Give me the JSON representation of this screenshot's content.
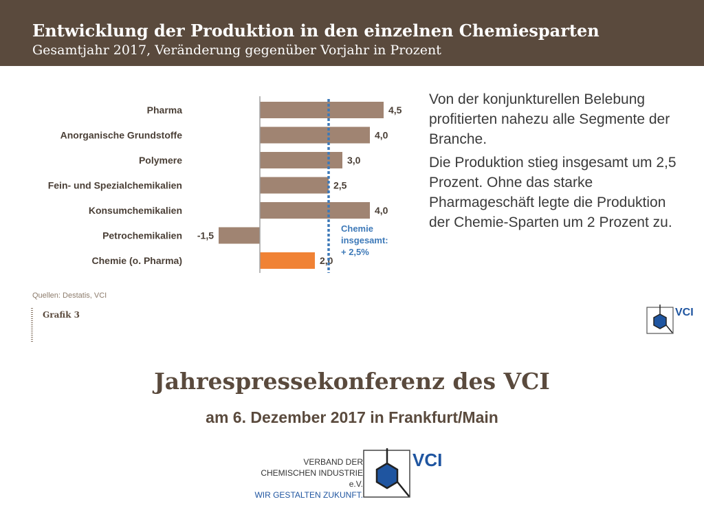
{
  "header": {
    "title": "Entwicklung der Produktion in den einzelnen Chemiesparten",
    "subtitle": "Gesamtjahr 2017, Veränderung gegenüber Vorjahr in Prozent"
  },
  "chart_data": {
    "type": "bar",
    "orientation": "horizontal",
    "categories": [
      "Pharma",
      "Anorganische Grundstoffe",
      "Polymere",
      "Fein- und Spezialchemikalien",
      "Konsumchemikalien",
      "Petrochemikalien",
      "Chemie (o. Pharma)"
    ],
    "values": [
      4.5,
      4.0,
      3.0,
      2.5,
      4.0,
      -1.5,
      2.0
    ],
    "value_labels": [
      "4,5",
      "4,0",
      "3,0",
      "2,5",
      "4,0",
      "-1,5",
      "2,0"
    ],
    "highlight_index": 6,
    "xlim": [
      -1.5,
      5.0
    ],
    "reference_line": {
      "value": 2.5,
      "label_lines": [
        "Chemie",
        "insgesamt:",
        "+ 2,5%"
      ]
    },
    "colors": {
      "bar": "#a08472",
      "highlight": "#f08235",
      "reference": "#3d79b8",
      "axis": "#a0a0a0"
    }
  },
  "text": {
    "p1": "Von der konjunkturellen Belebung profitierten nahezu alle Segmente der Branche.",
    "p2": "Die Produktion stieg insgesamt um 2,5 Prozent. Ohne das starke Pharmageschäft legte die Produktion der Chemie-Sparten um 2 Prozent zu."
  },
  "source": "Quellen: Destatis, VCI",
  "grafik": "Grafik 3",
  "logo_small": {
    "text": "VCI"
  },
  "event": {
    "title": "Jahrespressekonferenz des VCI",
    "subtitle": "am 6. Dezember 2017 in Frankfurt/Main"
  },
  "org": {
    "line1": "VERBAND DER",
    "line2": "CHEMISCHEN INDUSTRIE e.V.",
    "slogan": "WIR GESTALTEN ZUKUNFT.",
    "logo_text": "VCI"
  }
}
